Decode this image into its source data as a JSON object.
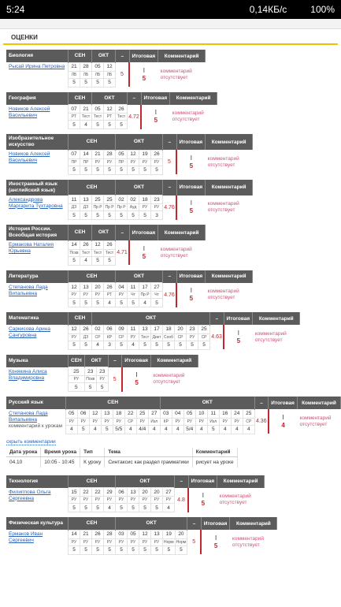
{
  "status": {
    "time": "5:24",
    "speed": "0,14КБ/с",
    "battery": "100%"
  },
  "title": "ОЦЕНКИ",
  "headers": {
    "avg": "–",
    "final": "Итоговая",
    "comment": "Комментарий"
  },
  "subjects": [
    {
      "name": "Биология",
      "teacher": "Рысай Ирина Петровна",
      "months": [
        {
          "name": "СЕН",
          "lessons": [
            {
              "date": "21",
              "type": "ЛБ",
              "mark": "5"
            },
            {
              "date": "28",
              "type": "ЛБ",
              "mark": "5"
            }
          ]
        },
        {
          "name": "ОКТ",
          "lessons": [
            {
              "date": "05",
              "type": "ЛБ",
              "mark": "5"
            },
            {
              "date": "12",
              "type": "ЛБ",
              "mark": "5"
            }
          ]
        }
      ],
      "average": "5",
      "final": {
        "period": "I",
        "mark": "5"
      },
      "comment": "комментарий отсутствует"
    },
    {
      "name": "География",
      "teacher": "Новиков Алексей Васильевич",
      "months": [
        {
          "name": "СЕН",
          "lessons": [
            {
              "date": "07",
              "type": "РТ",
              "mark": "5"
            },
            {
              "date": "21",
              "type": "Тест",
              "mark": "4"
            }
          ]
        },
        {
          "name": "ОКТ",
          "lessons": [
            {
              "date": "05",
              "type": "Тест",
              "mark": "5"
            },
            {
              "date": "12",
              "type": "РТ",
              "mark": "5"
            },
            {
              "date": "26",
              "type": "Тест",
              "mark": "5"
            }
          ]
        }
      ],
      "average": "4.72",
      "final": {
        "period": "I",
        "mark": "5"
      },
      "comment": "комментарий отсутствует"
    },
    {
      "name": "Изобразительное искусство",
      "teacher": "Новиков Алексей Васильевич",
      "months": [
        {
          "name": "СЕН",
          "lessons": [
            {
              "date": "07",
              "type": "ПР",
              "mark": "5"
            },
            {
              "date": "14",
              "type": "ПР",
              "mark": "5"
            },
            {
              "date": "21",
              "type": "РУ",
              "mark": "5"
            },
            {
              "date": "28",
              "type": "РУ",
              "mark": "5"
            }
          ]
        },
        {
          "name": "ОКТ",
          "lessons": [
            {
              "date": "05",
              "type": "ПР",
              "mark": "5"
            },
            {
              "date": "12",
              "type": "РУ",
              "mark": "5"
            },
            {
              "date": "19",
              "type": "РУ",
              "mark": "5"
            },
            {
              "date": "26",
              "type": "РУ",
              "mark": "5"
            }
          ]
        }
      ],
      "average": "5",
      "final": {
        "period": "I",
        "mark": "5"
      },
      "comment": "комментарий отсутствует"
    },
    {
      "name": "Иностранный язык (английский язык)",
      "teacher": "Александрова Маргарита Тухтаровна",
      "months": [
        {
          "name": "СЕН",
          "lessons": [
            {
              "date": "11",
              "type": "ДЗ",
              "mark": "5"
            },
            {
              "date": "13",
              "type": "ДЗ",
              "mark": "5"
            },
            {
              "date": "25",
              "type": "Пр Р",
              "mark": "5"
            },
            {
              "date": "25",
              "type": "Пр Р",
              "mark": "5"
            }
          ]
        },
        {
          "name": "ОКТ",
          "lessons": [
            {
              "date": "02",
              "type": "Пр Р",
              "mark": "5"
            },
            {
              "date": "02",
              "type": "Ауд",
              "mark": "5"
            },
            {
              "date": "18",
              "type": "РУ",
              "mark": "5"
            },
            {
              "date": "23",
              "type": "РУ",
              "mark": "3"
            }
          ]
        }
      ],
      "average": "4.76",
      "final": {
        "period": "I",
        "mark": "5"
      },
      "comment": "комментарий отсутствует"
    },
    {
      "name": "История России. Всеобщая история",
      "teacher": "Ермакова Наталия Юрьевна",
      "months": [
        {
          "name": "СЕН",
          "lessons": [
            {
              "date": "14",
              "type": "Пскв",
              "mark": "5"
            },
            {
              "date": "26",
              "type": "Тест",
              "mark": "4"
            }
          ]
        },
        {
          "name": "ОКТ",
          "lessons": [
            {
              "date": "12",
              "type": "Тест",
              "mark": "5"
            },
            {
              "date": "26",
              "type": "Тест",
              "mark": "5"
            }
          ]
        }
      ],
      "average": "4.71",
      "final": {
        "period": "I",
        "mark": "5"
      },
      "comment": "комментарий отсутствует"
    },
    {
      "name": "Литература",
      "teacher": "Степанова Лада Витальевна",
      "months": [
        {
          "name": "СЕН",
          "lessons": [
            {
              "date": "12",
              "type": "РУ",
              "mark": "5"
            },
            {
              "date": "13",
              "type": "РУ",
              "mark": "5"
            },
            {
              "date": "20",
              "type": "РУ",
              "mark": "5"
            },
            {
              "date": "26",
              "type": "РТ",
              "mark": "4"
            }
          ]
        },
        {
          "name": "ОКТ",
          "lessons": [
            {
              "date": "04",
              "type": "РУ",
              "mark": "5"
            },
            {
              "date": "11",
              "type": "Чт",
              "mark": "5"
            },
            {
              "date": "17",
              "type": "Пр Р",
              "mark": "4"
            },
            {
              "date": "27",
              "type": "Чт",
              "mark": "5"
            }
          ]
        }
      ],
      "average": "4.76",
      "final": {
        "period": "I",
        "mark": "5"
      },
      "comment": "комментарий отсутствует"
    },
    {
      "name": "Математика",
      "teacher": "Саркисова Арина Сангуровна",
      "months": [
        {
          "name": "СЕН",
          "lessons": [
            {
              "date": "12",
              "type": "РУ",
              "mark": "5"
            },
            {
              "date": "26",
              "type": "ДЗ",
              "mark": "5"
            }
          ]
        },
        {
          "name": "ОКТ",
          "lessons": [
            {
              "date": "02",
              "type": "СР",
              "mark": "4"
            },
            {
              "date": "06",
              "type": "КР",
              "mark": "3"
            },
            {
              "date": "09",
              "type": "СР",
              "mark": "5"
            },
            {
              "date": "11",
              "type": "РУ",
              "mark": "4"
            },
            {
              "date": "13",
              "type": "Тест",
              "mark": "5"
            },
            {
              "date": "17",
              "type": "Дикт",
              "mark": "5"
            },
            {
              "date": "18",
              "type": "Сооб",
              "mark": "5"
            },
            {
              "date": "20",
              "type": "СР",
              "mark": "5"
            },
            {
              "date": "23",
              "type": "РУ",
              "mark": "5"
            },
            {
              "date": "25",
              "type": "СР",
              "mark": "5"
            }
          ]
        }
      ],
      "average": "4.63",
      "final": {
        "period": "I",
        "mark": "5"
      },
      "comment": "комментарий отсутствует"
    },
    {
      "name": "Музыка",
      "teacher": "Конякина Алиса Владимировна",
      "months": [
        {
          "name": "СЕН",
          "lessons": [
            {
              "date": "25",
              "type": "РУ",
              "mark": "5"
            }
          ]
        },
        {
          "name": "ОКТ",
          "lessons": [
            {
              "date": "23",
              "type": "Пскв",
              "mark": "5"
            },
            {
              "date": "23",
              "type": "РУ",
              "mark": "5"
            }
          ]
        }
      ],
      "average": "5",
      "final": {
        "period": "I",
        "mark": "5"
      },
      "comment": "комментарий отсутствует"
    },
    {
      "name": "Русский язык",
      "teacher": "Степанова Лада Витальевна",
      "lesson_comments": "комментарий к урокам",
      "months": [
        {
          "name": "СЕН",
          "lessons": [
            {
              "date": "05",
              "type": "РУ",
              "mark": "4"
            },
            {
              "date": "06",
              "type": "РУ",
              "mark": "5"
            },
            {
              "date": "12",
              "type": "РУ",
              "mark": "4"
            },
            {
              "date": "13",
              "type": "РУ",
              "mark": "5"
            },
            {
              "date": "18",
              "type": "РУ",
              "mark": "5/5"
            },
            {
              "date": "22",
              "type": "СР",
              "mark": "4"
            },
            {
              "date": "25",
              "type": "РУ",
              "mark": "4/4"
            },
            {
              "date": "27",
              "type": "Изл",
              "mark": "4"
            }
          ]
        },
        {
          "name": "ОКТ",
          "lessons": [
            {
              "date": "03",
              "type": "КР",
              "mark": "4"
            },
            {
              "date": "04",
              "type": "РУ",
              "mark": "4"
            },
            {
              "date": "05",
              "type": "РУ",
              "mark": "5/4"
            },
            {
              "date": "10",
              "type": "РУ",
              "mark": "4"
            },
            {
              "date": "11",
              "type": "Изл",
              "mark": "5"
            },
            {
              "date": "16",
              "type": "РУ",
              "mark": "4"
            },
            {
              "date": "24",
              "type": "РУ",
              "mark": "4"
            },
            {
              "date": "25",
              "type": "СР",
              "mark": "4"
            }
          ]
        }
      ],
      "average": "4.36",
      "final": {
        "period": "I",
        "mark": "4"
      },
      "comment": "комментарий отсутствует"
    },
    {
      "name": "Технология",
      "teacher": "Филиппова Ольга Сергеевна",
      "months": [
        {
          "name": "СЕН",
          "lessons": [
            {
              "date": "15",
              "type": "РУ",
              "mark": "5"
            },
            {
              "date": "22",
              "type": "РУ",
              "mark": "5"
            },
            {
              "date": "22",
              "type": "РУ",
              "mark": "5"
            },
            {
              "date": "29",
              "type": "РУ",
              "mark": "4"
            }
          ]
        },
        {
          "name": "ОКТ",
          "lessons": [
            {
              "date": "06",
              "type": "РУ",
              "mark": "5"
            },
            {
              "date": "13",
              "type": "РУ",
              "mark": "5"
            },
            {
              "date": "20",
              "type": "РУ",
              "mark": "5"
            },
            {
              "date": "20",
              "type": "РУ",
              "mark": "5"
            },
            {
              "date": "27",
              "type": "РУ",
              "mark": "4"
            }
          ]
        }
      ],
      "average": "4.8",
      "final": {
        "period": "I",
        "mark": "5"
      },
      "comment": "комментарий отсутствует"
    },
    {
      "name": "Физическая культура",
      "teacher": "Ермаков Иван Сергеевич",
      "months": [
        {
          "name": "СЕН",
          "lessons": [
            {
              "date": "14",
              "type": "РУ",
              "mark": "5"
            },
            {
              "date": "21",
              "type": "РУ",
              "mark": "5"
            },
            {
              "date": "26",
              "type": "РУ",
              "mark": "5"
            },
            {
              "date": "28",
              "type": "РУ",
              "mark": "5"
            }
          ]
        },
        {
          "name": "ОКТ",
          "lessons": [
            {
              "date": "03",
              "type": "РУ",
              "mark": "5"
            },
            {
              "date": "05",
              "type": "РУ",
              "mark": "5"
            },
            {
              "date": "12",
              "type": "РУ",
              "mark": "5"
            },
            {
              "date": "13",
              "type": "РУ",
              "mark": "5"
            },
            {
              "date": "19",
              "type": "Норм",
              "mark": "5"
            },
            {
              "date": "20",
              "type": "Норм",
              "mark": "5"
            }
          ]
        }
      ],
      "average": "5",
      "final": {
        "period": "I",
        "mark": "5"
      },
      "comment": "комментарий отсутствует"
    }
  ],
  "comments": {
    "toggle": "скрыть комментарии",
    "columns": [
      "Дата урока",
      "Время урока",
      "Тип",
      "Тема",
      "Комментарий"
    ],
    "rows": [
      [
        "04.10",
        "10:05 - 10:45",
        "К уроку",
        "Синтаксис как раздел грамматики",
        "рисует на уроке"
      ]
    ]
  }
}
